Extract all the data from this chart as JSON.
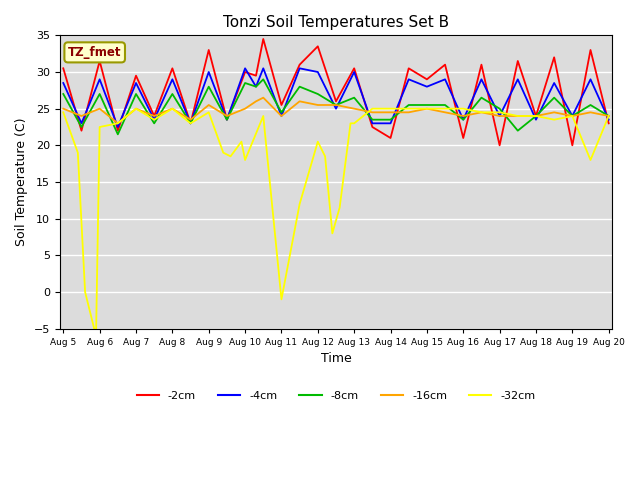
{
  "title": "Tonzi Soil Temperatures Set B",
  "xlabel": "Time",
  "ylabel": "Soil Temperature (C)",
  "ylim": [
    -5,
    35
  ],
  "ytick_vals": [
    -5,
    0,
    5,
    10,
    15,
    20,
    25,
    30,
    35
  ],
  "annotation_text": "TZ_fmet",
  "annotation_color": "#8B0000",
  "annotation_bg": "#FFFFCC",
  "annotation_border": "#999900",
  "plot_bg": "#DCDCDC",
  "fig_bg": "#FFFFFF",
  "xtick_labels": [
    "Aug 5",
    "Aug 6",
    "Aug 7",
    "Aug 8",
    "Aug 9",
    "Aug 10",
    "Aug 11",
    "Aug 12",
    "Aug 13",
    "Aug 14",
    "Aug 15",
    "Aug 16",
    "Aug 17",
    "Aug 18",
    "Aug 19",
    "Aug 20"
  ],
  "series": {
    "-2cm": {
      "color": "#FF0000",
      "lw": 1.3,
      "x": [
        0,
        0.5,
        1,
        1.5,
        2,
        2.5,
        3,
        3.5,
        4,
        4.5,
        5,
        5.3,
        5.5,
        6,
        6.5,
        7,
        7.5,
        8,
        8.5,
        9,
        9.5,
        10,
        10.5,
        11,
        11.5,
        12,
        12.5,
        13,
        13.5,
        14,
        14.5,
        15
      ],
      "y": [
        30.5,
        22.0,
        31.5,
        22.0,
        29.5,
        24.0,
        30.5,
        23.0,
        33.0,
        23.5,
        30.0,
        29.5,
        34.5,
        25.5,
        31.0,
        33.5,
        26.0,
        30.5,
        22.5,
        21.0,
        30.5,
        29.0,
        31.0,
        21.0,
        31.0,
        20.0,
        31.5,
        24.0,
        32.0,
        20.0,
        33.0,
        23.0
      ]
    },
    "-4cm": {
      "color": "#0000FF",
      "lw": 1.3,
      "x": [
        0,
        0.5,
        1,
        1.5,
        2,
        2.5,
        3,
        3.5,
        4,
        4.5,
        5,
        5.3,
        5.5,
        6,
        6.5,
        7,
        7.5,
        8,
        8.5,
        9,
        9.5,
        10,
        10.5,
        11,
        11.5,
        12,
        12.5,
        13,
        13.5,
        14,
        14.5,
        15
      ],
      "y": [
        28.5,
        23.0,
        29.0,
        22.5,
        28.5,
        23.5,
        29.0,
        23.0,
        30.0,
        23.5,
        30.5,
        28.0,
        30.5,
        24.0,
        30.5,
        30.0,
        25.0,
        30.0,
        23.0,
        23.0,
        29.0,
        28.0,
        29.0,
        23.5,
        29.0,
        24.0,
        29.0,
        23.5,
        28.5,
        24.0,
        29.0,
        23.5
      ]
    },
    "-8cm": {
      "color": "#00BB00",
      "lw": 1.3,
      "x": [
        0,
        0.5,
        1,
        1.5,
        2,
        2.5,
        3,
        3.5,
        4,
        4.5,
        5,
        5.3,
        5.5,
        6,
        6.5,
        7,
        7.5,
        8,
        8.5,
        9,
        9.5,
        10,
        10.5,
        11,
        11.5,
        12,
        12.5,
        13,
        13.5,
        14,
        14.5,
        15
      ],
      "y": [
        27.0,
        22.5,
        27.0,
        21.5,
        27.0,
        23.0,
        27.0,
        23.0,
        28.0,
        23.5,
        28.5,
        28.0,
        29.0,
        24.5,
        28.0,
        27.0,
        25.5,
        26.5,
        23.5,
        23.5,
        25.5,
        25.5,
        25.5,
        23.5,
        26.5,
        25.0,
        22.0,
        24.0,
        26.5,
        24.0,
        25.5,
        24.0
      ]
    },
    "-16cm": {
      "color": "#FFA500",
      "lw": 1.3,
      "x": [
        0,
        0.5,
        1,
        1.5,
        2,
        2.5,
        3,
        3.5,
        4,
        4.5,
        5,
        5.3,
        5.5,
        6,
        6.5,
        7,
        7.5,
        8,
        8.5,
        9,
        9.5,
        10,
        10.5,
        11,
        11.5,
        12,
        12.5,
        13,
        13.5,
        14,
        14.5,
        15
      ],
      "y": [
        25.0,
        24.0,
        25.0,
        23.0,
        25.0,
        24.0,
        25.0,
        23.5,
        25.5,
        24.0,
        25.0,
        26.0,
        26.5,
        24.0,
        26.0,
        25.5,
        25.5,
        25.0,
        24.5,
        24.5,
        24.5,
        25.0,
        24.5,
        24.0,
        24.5,
        24.0,
        24.0,
        24.0,
        24.5,
        24.0,
        24.5,
        24.0
      ]
    },
    "-32cm": {
      "color": "#FFFF00",
      "lw": 1.3,
      "x": [
        0,
        0.4,
        0.6,
        0.9,
        1.0,
        1.5,
        2,
        2.5,
        3,
        3.5,
        4,
        4.4,
        4.6,
        4.9,
        5.0,
        5.5,
        6,
        6.5,
        7,
        7.2,
        7.4,
        7.6,
        7.9,
        8.0,
        8.5,
        9,
        9.5,
        10,
        10.5,
        11,
        11.5,
        12,
        12.5,
        13,
        13.5,
        14,
        14.5,
        15
      ],
      "y": [
        24.5,
        19.0,
        0.0,
        -6.0,
        22.5,
        23.0,
        25.0,
        23.5,
        25.0,
        23.0,
        24.5,
        19.0,
        18.5,
        20.5,
        18.0,
        24.0,
        -1.0,
        12.0,
        20.5,
        18.5,
        8.0,
        11.5,
        23.0,
        23.0,
        25.0,
        25.0,
        25.0,
        25.0,
        25.0,
        25.0,
        24.5,
        24.5,
        24.0,
        24.0,
        23.5,
        24.0,
        18.0,
        24.0
      ]
    }
  }
}
